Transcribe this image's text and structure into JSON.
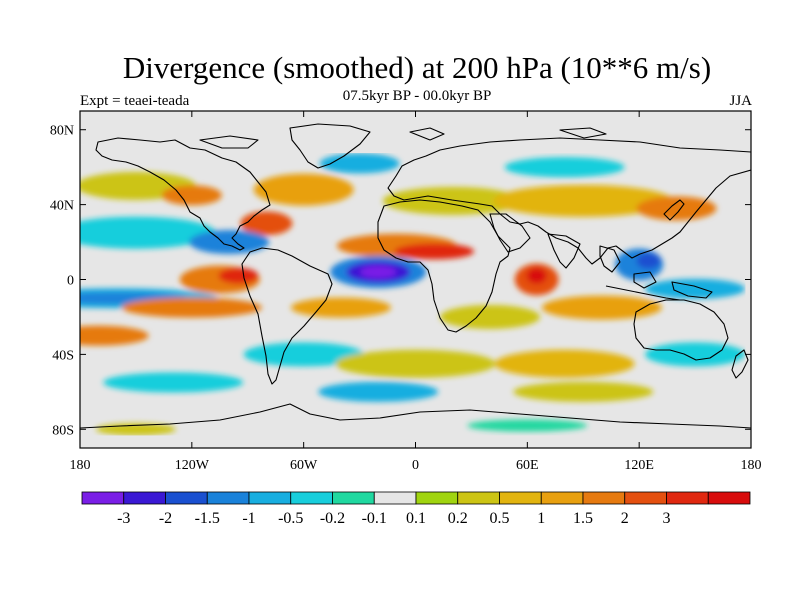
{
  "header": {
    "title": "Divergence (smoothed) at 200 hPa (10**6 m/s)",
    "subtitle": "07.5kyr BP - 00.0kyr BP",
    "expt": "Expt = teaei-teada",
    "season": "JJA"
  },
  "axes": {
    "lat_labels": [
      "80N",
      "40N",
      "0",
      "40S",
      "80S"
    ],
    "lat_values": [
      80,
      40,
      0,
      -40,
      -80
    ],
    "lon_labels": [
      "180",
      "120W",
      "60W",
      "0",
      "60E",
      "120E",
      "180"
    ],
    "lon_values": [
      -180,
      -120,
      -60,
      0,
      60,
      120,
      180
    ]
  },
  "colorbar": {
    "colors": [
      "#7a1ee6",
      "#3a18d4",
      "#1a50d0",
      "#1a82da",
      "#18aee0",
      "#18cedc",
      "#20d8a0",
      "#e6e6e6",
      "#a0d410",
      "#ccc414",
      "#e2b410",
      "#e8a010",
      "#e67a10",
      "#e45010",
      "#e02810",
      "#d80c0c"
    ],
    "labels": [
      "-3",
      "-2",
      "-1.5",
      "-1",
      "-0.5",
      "-0.2",
      "-0.1",
      "0.1",
      "0.2",
      "0.5",
      "1",
      "1.5",
      "2",
      "3"
    ]
  },
  "chart_data": {
    "type": "filled-contour-map",
    "title": "Divergence (smoothed) at 200 hPa (10**6 m/s)",
    "field_features": [
      {
        "lon": -20,
        "lat": 4,
        "value": -3.2,
        "name": "strong convergence over equatorial Atlantic / West Africa"
      },
      {
        "lon": -100,
        "lat": 0,
        "value": 2.0,
        "name": "divergence over eastern Pacific"
      },
      {
        "lon": -15,
        "lat": 18,
        "value": 1.6,
        "name": "divergence over Sahel"
      },
      {
        "lon": 65,
        "lat": 0,
        "value": 2.2,
        "name": "divergence over western Indian Ocean"
      },
      {
        "lon": 120,
        "lat": 8,
        "value": -1.6,
        "name": "convergence over Maritime Continent"
      },
      {
        "lon": -160,
        "lat": -10,
        "value": -1.2,
        "name": "convergence over South Pacific"
      }
    ]
  }
}
